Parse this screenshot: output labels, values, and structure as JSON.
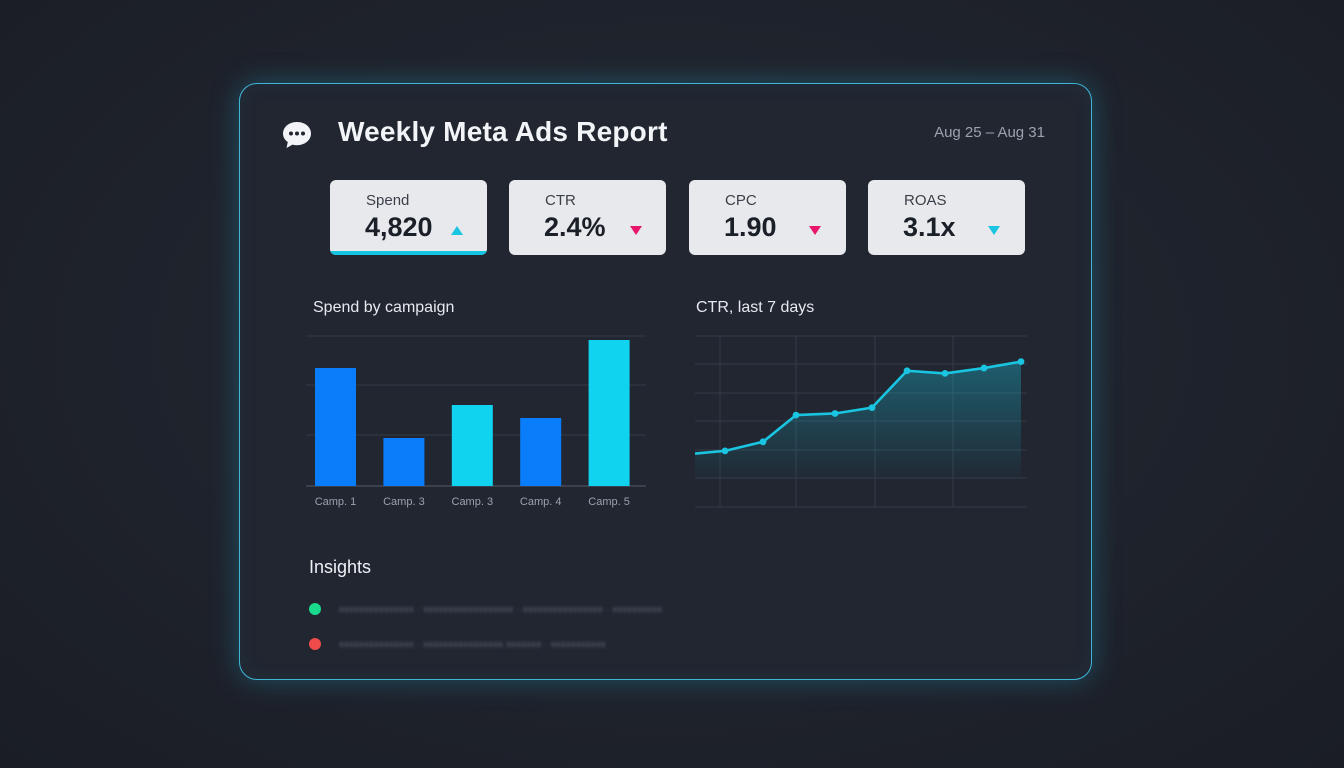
{
  "header": {
    "title": "Weekly Meta Ads Report",
    "date_range": "Aug 25 – Aug 31",
    "icon": "chat-bubble-icon"
  },
  "kpis": [
    {
      "label": "Spend",
      "value": "4,820",
      "trend": "up",
      "trend_color": "#19c5e0",
      "active": true
    },
    {
      "label": "CTR",
      "value": "2.4%",
      "trend": "down",
      "trend_color": "#e8176b",
      "active": false
    },
    {
      "label": "CPC",
      "value": "1.90",
      "trend": "down",
      "trend_color": "#e8176b",
      "active": false
    },
    {
      "label": "ROAS",
      "value": "3.1x",
      "trend": "down",
      "trend_color": "#19c5e0",
      "active": false
    }
  ],
  "charts": {
    "bar_title": "Spend by campaign",
    "line_title": "CTR, last 7 days"
  },
  "chart_data": [
    {
      "type": "bar",
      "title": "Spend by campaign",
      "categories": [
        "Camp. 1",
        "Camp. 3",
        "Camp. 3",
        "Camp. 4",
        "Camp. 5"
      ],
      "values": [
        118,
        48,
        81,
        68,
        146
      ],
      "colors": [
        "#0a7dfb",
        "#0a7dfb",
        "#0fd3ef",
        "#0a7dfb",
        "#0fd3ef"
      ],
      "ylim": [
        0,
        150
      ],
      "grid": true
    },
    {
      "type": "area",
      "title": "CTR, last 7 days",
      "x": [
        0,
        1,
        2,
        3,
        4,
        5,
        6,
        7,
        8,
        9
      ],
      "values": [
        1.0,
        1.05,
        1.22,
        1.72,
        1.75,
        1.86,
        2.55,
        2.5,
        2.6,
        2.72
      ],
      "ylim": [
        0,
        3.2
      ],
      "color": "#19c5e0",
      "grid": true
    }
  ],
  "insights": {
    "title": "Insights",
    "items": [
      {
        "text": "xxxxxxxxxxxxxxx · xxxxxxxxxxxxxxxxxx · xxxxxxxxxxxxxxxx · xxxxxxxxxx",
        "color": "#19d98c"
      },
      {
        "text": "xxxxxxxxxxxxxxx · xxxxxxxxxxxxxxxx xxxxxxx · xxxxxxxxxxx",
        "color": "#ef4b4b"
      }
    ]
  }
}
